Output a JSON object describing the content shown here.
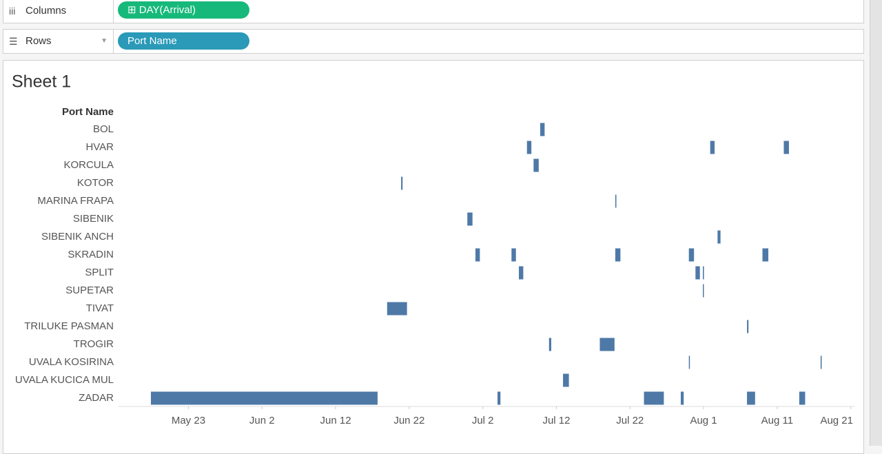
{
  "shelves": {
    "columns": {
      "label": "Columns",
      "pill": "DAY(Arrival)"
    },
    "rows": {
      "label": "Rows",
      "pill": "Port Name"
    }
  },
  "chart_data": {
    "type": "gantt",
    "title": "Sheet 1",
    "row_header": "Port Name",
    "color": "#4e79a7",
    "xlim": [
      133.5,
      233.5
    ],
    "xticks": [
      {
        "value": 143,
        "label": "May 23"
      },
      {
        "value": 153,
        "label": "Jun 2"
      },
      {
        "value": 163,
        "label": "Jun 12"
      },
      {
        "value": 173,
        "label": "Jun 22"
      },
      {
        "value": 183,
        "label": "Jul 2"
      },
      {
        "value": 193,
        "label": "Jul 12"
      },
      {
        "value": 203,
        "label": "Jul 22"
      },
      {
        "value": 213,
        "label": "Aug 1"
      },
      {
        "value": 223,
        "label": "Aug 11"
      },
      {
        "value": 233,
        "label": "Aug 21"
      }
    ],
    "rows": [
      {
        "name": "BOL",
        "starts": [
          190.8
        ],
        "durations": [
          0.6
        ]
      },
      {
        "name": "HVAR",
        "starts": [
          189.0,
          213.9,
          223.9
        ],
        "durations": [
          0.6,
          0.6,
          0.7
        ]
      },
      {
        "name": "KORCULA",
        "starts": [
          189.9
        ],
        "durations": [
          0.7
        ]
      },
      {
        "name": "KOTOR",
        "starts": [
          171.9
        ],
        "durations": [
          0.2
        ]
      },
      {
        "name": "MARINA FRAPA",
        "starts": [
          201.0
        ],
        "durations": [
          0.15
        ]
      },
      {
        "name": "SIBENIK",
        "starts": [
          180.9
        ],
        "durations": [
          0.7
        ]
      },
      {
        "name": "SIBENIK ANCH",
        "starts": [
          214.9
        ],
        "durations": [
          0.4
        ]
      },
      {
        "name": "SKRADIN",
        "starts": [
          182.0,
          186.9,
          201.0,
          211.0,
          221.0
        ],
        "durations": [
          0.6,
          0.6,
          0.7,
          0.7,
          0.8
        ]
      },
      {
        "name": "SPLIT",
        "starts": [
          187.9,
          211.9,
          212.9
        ],
        "durations": [
          0.6,
          0.6,
          0.15
        ]
      },
      {
        "name": "SUPETAR",
        "starts": [
          212.9
        ],
        "durations": [
          0.1
        ]
      },
      {
        "name": "TIVAT",
        "starts": [
          170.0
        ],
        "durations": [
          2.7
        ]
      },
      {
        "name": "TRILUKE PASMAN",
        "starts": [
          218.9
        ],
        "durations": [
          0.2
        ]
      },
      {
        "name": "TROGIR",
        "starts": [
          192.0,
          198.9
        ],
        "durations": [
          0.3,
          2.0
        ]
      },
      {
        "name": "UVALA KOSIRINA",
        "starts": [
          211.0,
          228.9
        ],
        "durations": [
          0.1,
          0.15
        ]
      },
      {
        "name": "UVALA KUCICA MUL",
        "starts": [
          193.9
        ],
        "durations": [
          0.8
        ]
      },
      {
        "name": "ZADAR",
        "starts": [
          137.9,
          185.0,
          204.9,
          209.9,
          218.9,
          226.0
        ],
        "durations": [
          30.8,
          0.4,
          2.7,
          0.4,
          1.1,
          0.8
        ]
      }
    ]
  }
}
